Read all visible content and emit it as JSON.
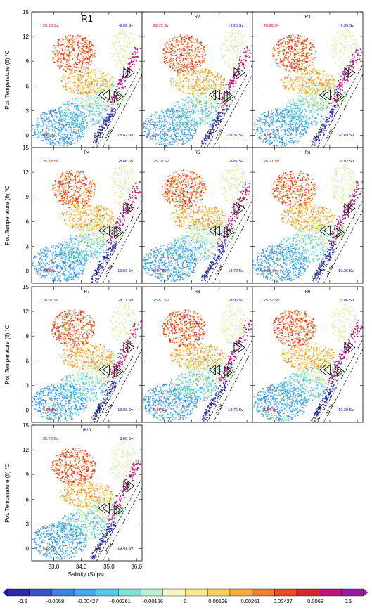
{
  "chart_data": {
    "type": "scatter",
    "description_units": {
      "x": "Salinity (S) psu",
      "y": "Pot. Temperature (θ) °C"
    },
    "xlabel": "Salinity (S) psu",
    "ylabel": "Pot. Temperature (θ) °C",
    "xlim": [
      32.2,
      36.2
    ],
    "ylim": [
      -1.5,
      15
    ],
    "xticks": [
      33.0,
      34.0,
      35.0,
      36.0
    ],
    "xtick_labels": [
      "33.0",
      "34.0",
      "35.0",
      "36.0"
    ],
    "yticks": [
      0,
      3,
      6,
      9,
      12,
      15
    ],
    "ytick_labels": [
      "0",
      "3",
      "6",
      "9",
      "12",
      "15"
    ],
    "isopycnal_labels": [
      "36.87",
      "37.06"
    ],
    "panels": [
      {
        "label": "R1",
        "red_value": "25.38 Sv",
        "blue_value": "-9.02 Sv",
        "red_bottom": "6.89 Sv",
        "blue_bottom": "-18.82 Sv"
      },
      {
        "label": "R2",
        "red_value": "26.72 Sv",
        "blue_value": "-9.25 Sv",
        "red_bottom": "6.93 Sv",
        "blue_bottom": "-20.37 Sv"
      },
      {
        "label": "R3",
        "red_value": "26.90 Sv",
        "blue_value": "-9.35 Sv",
        "red_bottom": "6.88 Sv",
        "blue_bottom": "-20.89 Sv"
      },
      {
        "label": "R4",
        "red_value": "25.88 Sv",
        "blue_value": "-8.86 Sv",
        "red_bottom": "6.83 Sv",
        "blue_bottom": "-19.93 Sv"
      },
      {
        "label": "R5",
        "red_value": "25.70 Sv",
        "blue_value": "-8.87 Sv",
        "red_bottom": "6.84 Sv",
        "blue_bottom": "-19.72 Sv"
      },
      {
        "label": "R6",
        "red_value": "25.21 Sv",
        "blue_value": "-8.92 Sv",
        "red_bottom": "6.85 Sv",
        "blue_bottom": "-19.26 Sv"
      },
      {
        "label": "R7",
        "red_value": "24.97 Sv",
        "blue_value": "-8.71 Sv",
        "red_bottom": "6.82 Sv",
        "blue_bottom": "-19.03 Sv"
      },
      {
        "label": "R8",
        "red_value": "25.87 Sv",
        "blue_value": "-8.96 Sv",
        "red_bottom": "6.85 Sv",
        "blue_bottom": "-19.76 Sv"
      },
      {
        "label": "R9",
        "red_value": "25.72 Sv",
        "blue_value": "-9.86 Sv",
        "red_bottom": "6.84 Sv",
        "blue_bottom": "-19.39 Sv"
      },
      {
        "label": "R10",
        "red_value": "25.72 Sv",
        "blue_value": "-9.90 Sv",
        "red_bottom": "6.85 Sv",
        "blue_bottom": "-19.41 Sv"
      }
    ],
    "colorbar": {
      "labels": [
        "-0.5",
        "-0.0068",
        "-0.00427",
        "-0.00261",
        "-0.00126",
        "0",
        "0.00126",
        "0.00261",
        "0.00427",
        "0.0068",
        "0.5"
      ],
      "colors": [
        "#2a2aa8",
        "#3a52c8",
        "#3f7fe0",
        "#4aa6ea",
        "#53c7e6",
        "#7fe0d8",
        "#b8f0d0",
        "#f2f7c0",
        "#f8e88a",
        "#f7cf5a",
        "#f3ad3a",
        "#ee8030",
        "#e84a2a",
        "#d8242a",
        "#c0127a",
        "#9a1a9a"
      ]
    }
  }
}
